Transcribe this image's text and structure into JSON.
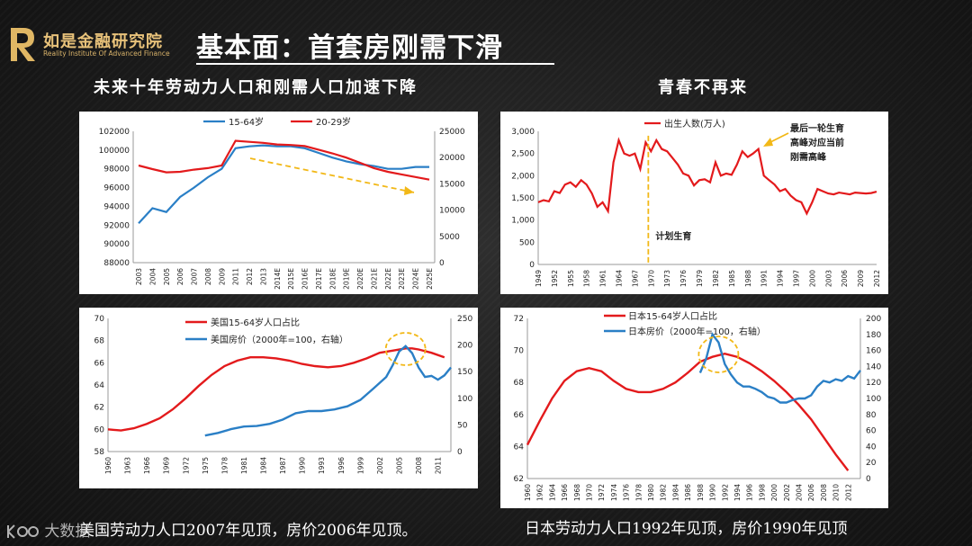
{
  "header": {
    "logo_name": "如是金融研究院",
    "logo_sub": "Reality Institute Of Advanced Finance",
    "title": "基本面：首套房刚需下滑"
  },
  "sections": {
    "left_title": "未来十年劳动力人口和刚需人口加速下降",
    "right_title": "青春不再来"
  },
  "captions": {
    "bottom_left": "美国劳动力人口2007年见顶，房价2006年见顶。",
    "bottom_right": "日本劳动力人口1992年见顶，房价1990年见顶"
  },
  "watermark": "大数据",
  "colors": {
    "red": "#e31a1c",
    "blue": "#2a7fc6",
    "arrow": "#f2b817"
  },
  "chart_data": [
    {
      "type": "line",
      "id": "china-labor",
      "legend": [
        "15-64岁",
        "20-29岁"
      ],
      "categories": [
        "2003",
        "2004",
        "2005",
        "2006",
        "2007",
        "2008",
        "2009",
        "2011",
        "2012",
        "2013",
        "2014E",
        "2015E",
        "2016E",
        "2017E",
        "2018E",
        "2019E",
        "2020E",
        "2021E",
        "2022E",
        "2023E",
        "2024E",
        "2025E"
      ],
      "left_axis": {
        "min": 88000,
        "max": 102000,
        "ticks": [
          "88000",
          "90000",
          "92000",
          "94000",
          "96000",
          "98000",
          "100000",
          "102000"
        ]
      },
      "right_axis": {
        "min": 0,
        "max": 25000,
        "ticks": [
          "0",
          "5000",
          "10000",
          "15000",
          "20000",
          "25000"
        ]
      },
      "series": [
        {
          "name": "15-64岁",
          "axis": "left",
          "color": "blue",
          "values": [
            92200,
            93800,
            93400,
            95000,
            96000,
            97100,
            98000,
            100200,
            100400,
            100500,
            100400,
            100400,
            100200,
            99700,
            99200,
            98800,
            98500,
            98300,
            98000,
            98000,
            98200,
            98200
          ]
        },
        {
          "name": "20-29岁",
          "axis": "right",
          "color": "red",
          "values": [
            18500,
            17800,
            17200,
            17300,
            17700,
            18000,
            18500,
            23200,
            23000,
            22800,
            22500,
            22400,
            22200,
            21500,
            20800,
            20000,
            19000,
            18000,
            17300,
            16800,
            16300,
            15800
          ]
        }
      ]
    },
    {
      "type": "line",
      "id": "china-births",
      "legend": [
        "出生人数(万人)"
      ],
      "categories": [
        "1949",
        "1952",
        "1955",
        "1958",
        "1961",
        "1964",
        "1967",
        "1970",
        "1973",
        "1976",
        "1979",
        "1982",
        "1985",
        "1988",
        "1991",
        "1994",
        "1997",
        "2000",
        "2003",
        "2006",
        "2009",
        "2012"
      ],
      "left_axis": {
        "min": 0,
        "max": 3000,
        "ticks": [
          "0",
          "500",
          "1,000",
          "1,500",
          "2,000",
          "2,500",
          "3,000"
        ]
      },
      "annotations": {
        "plan_label": "计划生育",
        "peak_label_1": "最后一轮生育",
        "peak_label_2": "高峰对应当前",
        "peak_label_3": "刚需高峰"
      },
      "series": [
        {
          "name": "出生人数(万人)",
          "color": "red",
          "points": [
            [
              1949,
              1400
            ],
            [
              1950,
              1450
            ],
            [
              1951,
              1420
            ],
            [
              1952,
              1650
            ],
            [
              1953,
              1610
            ],
            [
              1954,
              1800
            ],
            [
              1955,
              1850
            ],
            [
              1956,
              1750
            ],
            [
              1957,
              1900
            ],
            [
              1958,
              1800
            ],
            [
              1959,
              1600
            ],
            [
              1960,
              1300
            ],
            [
              1961,
              1400
            ],
            [
              1962,
              1200
            ],
            [
              1963,
              2300
            ],
            [
              1964,
              2800
            ],
            [
              1965,
              2500
            ],
            [
              1966,
              2450
            ],
            [
              1967,
              2500
            ],
            [
              1968,
              2150
            ],
            [
              1969,
              2750
            ],
            [
              1970,
              2550
            ],
            [
              1971,
              2800
            ],
            [
              1972,
              2600
            ],
            [
              1973,
              2550
            ],
            [
              1974,
              2400
            ],
            [
              1975,
              2250
            ],
            [
              1976,
              2050
            ],
            [
              1977,
              2000
            ],
            [
              1978,
              1780
            ],
            [
              1979,
              1900
            ],
            [
              1980,
              1920
            ],
            [
              1981,
              1850
            ],
            [
              1982,
              2300
            ],
            [
              1983,
              2000
            ],
            [
              1984,
              2050
            ],
            [
              1985,
              2020
            ],
            [
              1986,
              2250
            ],
            [
              1987,
              2550
            ],
            [
              1988,
              2420
            ],
            [
              1989,
              2500
            ],
            [
              1990,
              2600
            ],
            [
              1991,
              2000
            ],
            [
              1992,
              1900
            ],
            [
              1993,
              1800
            ],
            [
              1994,
              1650
            ],
            [
              1995,
              1700
            ],
            [
              1996,
              1550
            ],
            [
              1997,
              1450
            ],
            [
              1998,
              1400
            ],
            [
              1999,
              1150
            ],
            [
              2000,
              1400
            ],
            [
              2001,
              1700
            ],
            [
              2002,
              1650
            ],
            [
              2003,
              1600
            ],
            [
              2004,
              1580
            ],
            [
              2005,
              1620
            ],
            [
              2006,
              1600
            ],
            [
              2007,
              1580
            ],
            [
              2008,
              1620
            ],
            [
              2009,
              1610
            ],
            [
              2010,
              1600
            ],
            [
              2011,
              1610
            ],
            [
              2012,
              1640
            ]
          ]
        }
      ]
    },
    {
      "type": "line",
      "id": "us-labor",
      "legend": [
        "美国15-64岁人口占比",
        "美国房价（2000年=100，右轴）"
      ],
      "categories": [
        "1960",
        "1963",
        "1966",
        "1969",
        "1972",
        "1975",
        "1978",
        "1981",
        "1984",
        "1987",
        "1990",
        "1993",
        "1996",
        "1999",
        "2002",
        "2005",
        "2008",
        "2011"
      ],
      "left_axis": {
        "min": 58,
        "max": 70,
        "ticks": [
          "58",
          "60",
          "62",
          "64",
          "66",
          "68",
          "70"
        ]
      },
      "right_axis": {
        "min": 0,
        "max": 250,
        "ticks": [
          "0",
          "50",
          "100",
          "150",
          "200",
          "250"
        ]
      },
      "series": [
        {
          "name": "美国15-64岁人口占比",
          "axis": "left",
          "color": "red",
          "points": [
            [
              1960,
              60.0
            ],
            [
              1962,
              59.9
            ],
            [
              1964,
              60.1
            ],
            [
              1966,
              60.5
            ],
            [
              1968,
              61.0
            ],
            [
              1970,
              61.8
            ],
            [
              1972,
              62.8
            ],
            [
              1974,
              63.9
            ],
            [
              1976,
              64.9
            ],
            [
              1978,
              65.7
            ],
            [
              1980,
              66.2
            ],
            [
              1982,
              66.5
            ],
            [
              1984,
              66.5
            ],
            [
              1986,
              66.4
            ],
            [
              1988,
              66.2
            ],
            [
              1990,
              65.9
            ],
            [
              1992,
              65.7
            ],
            [
              1994,
              65.6
            ],
            [
              1996,
              65.7
            ],
            [
              1998,
              66.0
            ],
            [
              2000,
              66.4
            ],
            [
              2002,
              66.9
            ],
            [
              2004,
              67.1
            ],
            [
              2006,
              67.3
            ],
            [
              2007,
              67.3
            ],
            [
              2008,
              67.2
            ],
            [
              2010,
              66.9
            ],
            [
              2012,
              66.5
            ]
          ]
        },
        {
          "name": "美国房价（2000年=100，右轴）",
          "axis": "right",
          "color": "blue",
          "points": [
            [
              1975,
              30
            ],
            [
              1977,
              35
            ],
            [
              1979,
              42
            ],
            [
              1981,
              47
            ],
            [
              1983,
              48
            ],
            [
              1985,
              52
            ],
            [
              1987,
              60
            ],
            [
              1989,
              72
            ],
            [
              1991,
              76
            ],
            [
              1993,
              76
            ],
            [
              1995,
              79
            ],
            [
              1997,
              85
            ],
            [
              1999,
              97
            ],
            [
              2001,
              118
            ],
            [
              2003,
              140
            ],
            [
              2004,
              162
            ],
            [
              2005,
              188
            ],
            [
              2006,
              198
            ],
            [
              2007,
              185
            ],
            [
              2008,
              158
            ],
            [
              2009,
              140
            ],
            [
              2010,
              142
            ],
            [
              2011,
              135
            ],
            [
              2012,
              143
            ],
            [
              2013,
              158
            ]
          ]
        }
      ]
    },
    {
      "type": "line",
      "id": "japan-labor",
      "legend": [
        "日本15-64岁人口占比",
        "日本房价（2000年=100，右轴）"
      ],
      "categories": [
        "1960",
        "1962",
        "1964",
        "1966",
        "1968",
        "1970",
        "1972",
        "1974",
        "1976",
        "1978",
        "1980",
        "1982",
        "1984",
        "1986",
        "1988",
        "1990",
        "1992",
        "1994",
        "1996",
        "1998",
        "2000",
        "2002",
        "2004",
        "2006",
        "2008",
        "2010",
        "2012"
      ],
      "left_axis": {
        "min": 62,
        "max": 72,
        "ticks": [
          "62",
          "64",
          "66",
          "68",
          "70",
          "72"
        ]
      },
      "right_axis": {
        "min": 0,
        "max": 200,
        "ticks": [
          "0",
          "20",
          "40",
          "60",
          "80",
          "100",
          "120",
          "140",
          "160",
          "180",
          "200"
        ]
      },
      "series": [
        {
          "name": "日本15-64岁人口占比",
          "axis": "left",
          "color": "red",
          "points": [
            [
              1960,
              64.1
            ],
            [
              1962,
              65.6
            ],
            [
              1964,
              67.0
            ],
            [
              1966,
              68.1
            ],
            [
              1968,
              68.7
            ],
            [
              1970,
              68.9
            ],
            [
              1972,
              68.7
            ],
            [
              1974,
              68.1
            ],
            [
              1976,
              67.6
            ],
            [
              1978,
              67.4
            ],
            [
              1980,
              67.4
            ],
            [
              1982,
              67.6
            ],
            [
              1984,
              68.0
            ],
            [
              1986,
              68.6
            ],
            [
              1988,
              69.3
            ],
            [
              1990,
              69.6
            ],
            [
              1992,
              69.8
            ],
            [
              1994,
              69.6
            ],
            [
              1996,
              69.2
            ],
            [
              1998,
              68.7
            ],
            [
              2000,
              68.1
            ],
            [
              2002,
              67.4
            ],
            [
              2004,
              66.6
            ],
            [
              2006,
              65.7
            ],
            [
              2008,
              64.6
            ],
            [
              2010,
              63.5
            ],
            [
              2012,
              62.5
            ]
          ]
        },
        {
          "name": "日本房价（2000年=100，右轴）",
          "axis": "right",
          "color": "blue",
          "points": [
            [
              1988,
              132
            ],
            [
              1989,
              150
            ],
            [
              1990,
              180
            ],
            [
              1991,
              170
            ],
            [
              1992,
              143
            ],
            [
              1993,
              130
            ],
            [
              1994,
              120
            ],
            [
              1995,
              115
            ],
            [
              1996,
              115
            ],
            [
              1997,
              112
            ],
            [
              1998,
              108
            ],
            [
              1999,
              102
            ],
            [
              2000,
              100
            ],
            [
              2001,
              95
            ],
            [
              2002,
              95
            ],
            [
              2003,
              98
            ],
            [
              2004,
              100
            ],
            [
              2005,
              100
            ],
            [
              2006,
              104
            ],
            [
              2007,
              115
            ],
            [
              2008,
              122
            ],
            [
              2009,
              120
            ],
            [
              2010,
              124
            ],
            [
              2011,
              122
            ],
            [
              2012,
              128
            ],
            [
              2013,
              125
            ],
            [
              2014,
              135
            ]
          ]
        }
      ]
    }
  ]
}
